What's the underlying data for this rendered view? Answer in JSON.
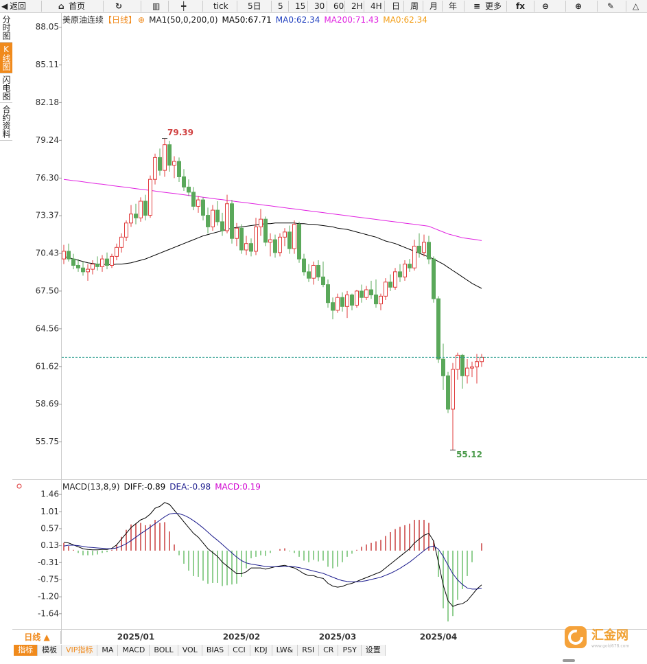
{
  "toolbar": [
    "返回",
    "首页",
    "tick",
    "5日",
    "5",
    "15",
    "30",
    "60",
    "2H",
    "4H",
    "日",
    "周",
    "月",
    "年",
    "更多"
  ],
  "side_tabs": [
    "分时图",
    "K线图",
    "闪电图",
    "合约资料"
  ],
  "period_button": "日线 ▲",
  "indicator_tabs": [
    "指标",
    "模板",
    "VIP指标",
    "MA",
    "MACD",
    "BOLL",
    "VOL",
    "BIAS",
    "CCI",
    "KDJ",
    "LW&",
    "RSI",
    "CR",
    "PSY",
    "设置"
  ],
  "watermark": {
    "name": "汇金网",
    "url": "www.gold678.com"
  },
  "chart_data": [
    {
      "type": "candlestick",
      "title": "美原油连续",
      "period": "【日线】",
      "indicator": "MA1(50,0,200,0)",
      "legend": [
        {
          "label": "MA50:67.71",
          "color": "#000000"
        },
        {
          "label": "MA0:62.34",
          "color": "#1f3fbf"
        },
        {
          "label": "MA200:71.43",
          "color": "#e020e0"
        },
        {
          "label": "MA0:62.34",
          "color": "#f39c12"
        }
      ],
      "categories": [
        null,
        null,
        null,
        null,
        null,
        null,
        null,
        null,
        null,
        null,
        null,
        null,
        null,
        null,
        null,
        "2025/01",
        null,
        null,
        null,
        null,
        null,
        null,
        null,
        null,
        null,
        null,
        null,
        null,
        null,
        null,
        null,
        null,
        null,
        null,
        null,
        null,
        null,
        "2025/02",
        null,
        null,
        null,
        null,
        null,
        null,
        null,
        null,
        null,
        null,
        null,
        null,
        null,
        null,
        null,
        null,
        null,
        null,
        null,
        "2025/03",
        null,
        null,
        null,
        null,
        null,
        null,
        null,
        null,
        null,
        null,
        null,
        null,
        null,
        null,
        null,
        null,
        null,
        null,
        null,
        null,
        "2025/04",
        null,
        null,
        null,
        null,
        null,
        null,
        null,
        null,
        null
      ],
      "open": [
        70.0,
        70.6,
        70.0,
        69.5,
        69.3,
        69.0,
        69.2,
        69.6,
        69.4,
        70.0,
        69.5,
        70.2,
        70.9,
        71.7,
        72.8,
        73.5,
        73.2,
        74.5,
        73.4,
        76.2,
        77.9,
        76.9,
        78.9,
        77.3,
        77.6,
        76.4,
        75.6,
        75.2,
        74.1,
        74.6,
        73.4,
        72.5,
        73.8,
        72.9,
        72.2,
        74.3,
        71.6,
        72.4,
        70.7,
        71.2,
        70.6,
        72.5,
        73.1,
        71.3,
        71.5,
        70.5,
        71.7,
        72.1,
        70.8,
        72.7,
        70.0,
        69.0,
        68.5,
        69.5,
        68.6,
        68.0,
        66.6,
        66.0,
        67.0,
        66.3,
        67.2,
        66.4,
        67.5,
        67.0,
        67.6,
        67.2,
        66.5,
        67.1,
        68.2,
        67.8,
        69.0,
        68.6,
        69.6,
        69.3,
        71.0,
        70.5,
        71.3,
        70.0,
        66.9,
        62.2,
        60.9,
        58.3,
        61.4,
        62.5,
        60.9,
        61.5,
        61.6,
        62.0
      ],
      "high": [
        71.1,
        71.2,
        70.4,
        70.0,
        69.8,
        69.6,
        69.9,
        70.2,
        70.3,
        70.5,
        70.4,
        71.2,
        72.0,
        73.0,
        74.2,
        74.3,
        74.8,
        75.0,
        76.5,
        78.2,
        78.6,
        79.39,
        79.2,
        78.0,
        77.9,
        77.0,
        76.2,
        75.6,
        74.9,
        74.8,
        74.0,
        74.2,
        74.5,
        73.6,
        75.0,
        74.6,
        72.8,
        72.7,
        71.8,
        71.6,
        73.2,
        73.9,
        73.3,
        72.0,
        71.9,
        72.0,
        72.4,
        72.6,
        73.0,
        72.9,
        70.4,
        69.6,
        69.8,
        69.9,
        69.8,
        68.4,
        67.0,
        67.3,
        67.4,
        67.5,
        67.3,
        67.6,
        68.0,
        67.9,
        68.3,
        68.4,
        67.3,
        68.5,
        68.8,
        69.3,
        69.6,
        69.9,
        70.0,
        71.5,
        72.0,
        71.9,
        71.8,
        70.2,
        67.1,
        63.4,
        61.2,
        61.9,
        62.7,
        62.6,
        62.2,
        62.0,
        62.6,
        62.6
      ],
      "low": [
        69.6,
        69.8,
        69.2,
        69.0,
        68.7,
        68.3,
        68.8,
        69.1,
        69.0,
        69.2,
        69.3,
        69.9,
        70.5,
        71.4,
        72.5,
        72.7,
        72.9,
        73.0,
        73.2,
        75.8,
        76.5,
        76.4,
        76.8,
        76.3,
        76.0,
        75.3,
        74.9,
        73.8,
        73.6,
        73.0,
        72.0,
        72.2,
        72.6,
        71.8,
        72.0,
        71.2,
        71.0,
        70.4,
        70.3,
        70.2,
        70.3,
        71.8,
        71.0,
        70.2,
        70.1,
        70.2,
        71.0,
        70.4,
        70.4,
        69.7,
        68.7,
        68.2,
        68.0,
        68.3,
        67.8,
        66.2,
        65.3,
        65.8,
        65.9,
        65.4,
        66.0,
        66.2,
        66.6,
        66.8,
        66.9,
        66.2,
        66.0,
        66.8,
        67.5,
        67.6,
        68.2,
        68.3,
        69.0,
        69.1,
        70.1,
        70.2,
        69.6,
        66.6,
        61.9,
        59.8,
        58.0,
        55.12,
        60.6,
        59.9,
        60.3,
        60.8,
        60.3,
        61.6
      ],
      "close": [
        70.6,
        70.0,
        69.5,
        69.3,
        69.0,
        69.2,
        69.6,
        69.4,
        70.0,
        69.5,
        70.2,
        70.9,
        71.7,
        72.8,
        73.5,
        73.2,
        74.5,
        73.4,
        76.2,
        77.9,
        76.9,
        78.9,
        77.3,
        77.6,
        76.4,
        75.6,
        75.2,
        74.1,
        74.6,
        73.4,
        72.5,
        73.8,
        72.9,
        72.2,
        74.3,
        71.6,
        72.4,
        70.7,
        71.2,
        70.6,
        72.5,
        73.1,
        71.3,
        71.5,
        70.5,
        71.7,
        72.1,
        70.8,
        72.7,
        70.0,
        69.0,
        68.5,
        69.5,
        68.6,
        68.0,
        66.6,
        66.0,
        67.0,
        66.3,
        67.2,
        66.4,
        67.5,
        67.0,
        67.6,
        67.2,
        66.5,
        67.1,
        68.2,
        67.8,
        69.0,
        68.6,
        69.6,
        69.3,
        71.0,
        70.5,
        71.3,
        70.0,
        66.9,
        62.2,
        60.9,
        58.3,
        61.4,
        62.5,
        60.9,
        61.5,
        61.6,
        62.0,
        62.34
      ],
      "series": [
        {
          "color": "#000000",
          "values": [
            70.2,
            70.1,
            70.0,
            69.9,
            69.8,
            69.7,
            69.65,
            69.6,
            69.6,
            69.55,
            69.55,
            69.6,
            69.6,
            69.65,
            69.7,
            69.8,
            69.9,
            70.0,
            70.15,
            70.3,
            70.45,
            70.6,
            70.75,
            70.9,
            71.05,
            71.2,
            71.35,
            71.5,
            71.65,
            71.8,
            71.9,
            72.0,
            72.1,
            72.2,
            72.3,
            72.4,
            72.45,
            72.5,
            72.55,
            72.6,
            72.65,
            72.7,
            72.75,
            72.75,
            72.8,
            72.8,
            72.8,
            72.8,
            72.8,
            72.75,
            72.75,
            72.7,
            72.7,
            72.65,
            72.6,
            72.55,
            72.5,
            72.4,
            72.35,
            72.3,
            72.2,
            72.1,
            72.0,
            71.9,
            71.8,
            71.7,
            71.55,
            71.4,
            71.3,
            71.2,
            71.05,
            70.9,
            70.75,
            70.6,
            70.45,
            70.3,
            70.15,
            70.0,
            69.8,
            69.6,
            69.35,
            69.1,
            68.85,
            68.6,
            68.35,
            68.1,
            67.9,
            67.71
          ]
        },
        {
          "color": "#e020e0",
          "values": [
            76.2,
            76.15,
            76.1,
            76.06,
            76.01,
            75.96,
            75.91,
            75.86,
            75.82,
            75.77,
            75.72,
            75.67,
            75.62,
            75.58,
            75.53,
            75.48,
            75.43,
            75.38,
            75.34,
            75.29,
            75.24,
            75.19,
            75.14,
            75.1,
            75.05,
            75.0,
            74.95,
            74.9,
            74.86,
            74.81,
            74.76,
            74.71,
            74.66,
            74.62,
            74.57,
            74.52,
            74.47,
            74.42,
            74.38,
            74.33,
            74.28,
            74.23,
            74.18,
            74.14,
            74.09,
            74.04,
            73.99,
            73.94,
            73.9,
            73.85,
            73.8,
            73.75,
            73.7,
            73.66,
            73.61,
            73.56,
            73.51,
            73.46,
            73.42,
            73.37,
            73.32,
            73.27,
            73.22,
            73.18,
            73.13,
            73.08,
            73.03,
            72.98,
            72.94,
            72.89,
            72.84,
            72.79,
            72.74,
            72.7,
            72.65,
            72.6,
            72.55,
            72.4,
            72.25,
            72.1,
            71.95,
            71.85,
            71.75,
            71.65,
            71.6,
            71.55,
            71.5,
            71.43
          ]
        }
      ],
      "up_color": "#e03c3c",
      "down_color": "#5aa85a",
      "last_price_color": "#2a9d8f",
      "ylim": [
        53.0,
        89.1
      ],
      "yticks": [
        88.05,
        85.11,
        82.18,
        79.24,
        {
          "value": 76.3,
          "label": "76.30"
        },
        73.37,
        70.43,
        {
          "value": 67.5,
          "label": "67.50"
        },
        64.56,
        61.62,
        58.69,
        55.75
      ],
      "grid": false
    },
    {
      "type": "macd",
      "title": "MACD(13,8,9)",
      "legend": [
        {
          "label": "DIFF:-0.89",
          "color": "#000000"
        },
        {
          "label": "DEA:-0.98",
          "color": "#1a1a8c"
        },
        {
          "label": "MACD:0.19",
          "color": "#d000d0"
        }
      ],
      "series": [
        {
          "color": "#000000",
          "values": [
            0.22,
            0.2,
            0.15,
            0.1,
            0.05,
            0.03,
            0.02,
            0.02,
            0.03,
            0.03,
            0.06,
            0.15,
            0.3,
            0.45,
            0.6,
            0.7,
            0.8,
            0.85,
            0.95,
            1.1,
            1.15,
            1.25,
            1.2,
            1.05,
            0.9,
            0.75,
            0.6,
            0.45,
            0.35,
            0.2,
            0.05,
            -0.05,
            -0.15,
            -0.3,
            -0.4,
            -0.5,
            -0.6,
            -0.6,
            -0.55,
            -0.45,
            -0.45,
            -0.45,
            -0.48,
            -0.45,
            -0.42,
            -0.4,
            -0.38,
            -0.42,
            -0.45,
            -0.52,
            -0.6,
            -0.65,
            -0.65,
            -0.7,
            -0.72,
            -0.85,
            -0.92,
            -0.95,
            -0.93,
            -0.88,
            -0.85,
            -0.8,
            -0.75,
            -0.7,
            -0.65,
            -0.6,
            -0.55,
            -0.45,
            -0.35,
            -0.25,
            -0.15,
            -0.05,
            0.05,
            0.2,
            0.3,
            0.4,
            0.45,
            0.25,
            -0.3,
            -0.9,
            -1.3,
            -1.45,
            -1.4,
            -1.38,
            -1.3,
            -1.15,
            -1.0,
            -0.89
          ]
        },
        {
          "color": "#1a1a8c",
          "values": [
            0.12,
            0.14,
            0.14,
            0.13,
            0.11,
            0.09,
            0.08,
            0.07,
            0.06,
            0.05,
            0.05,
            0.07,
            0.12,
            0.18,
            0.26,
            0.35,
            0.44,
            0.52,
            0.61,
            0.7,
            0.79,
            0.88,
            0.95,
            0.97,
            0.96,
            0.92,
            0.86,
            0.78,
            0.69,
            0.59,
            0.48,
            0.37,
            0.27,
            0.16,
            0.05,
            -0.06,
            -0.17,
            -0.26,
            -0.32,
            -0.35,
            -0.37,
            -0.39,
            -0.41,
            -0.42,
            -0.42,
            -0.42,
            -0.41,
            -0.41,
            -0.42,
            -0.44,
            -0.47,
            -0.5,
            -0.53,
            -0.56,
            -0.59,
            -0.64,
            -0.69,
            -0.74,
            -0.78,
            -0.8,
            -0.81,
            -0.81,
            -0.8,
            -0.78,
            -0.75,
            -0.72,
            -0.69,
            -0.64,
            -0.59,
            -0.53,
            -0.46,
            -0.38,
            -0.3,
            -0.2,
            -0.1,
            0.0,
            0.09,
            0.12,
            0.04,
            -0.15,
            -0.38,
            -0.6,
            -0.76,
            -0.88,
            -0.97,
            -1.0,
            -1.0,
            -0.98
          ]
        }
      ],
      "bars": {
        "up_color": "#c83c3c",
        "down_color": "#6cbf6c",
        "values": [
          0.2,
          0.12,
          0.02,
          -0.06,
          -0.12,
          -0.12,
          -0.12,
          -0.1,
          -0.06,
          -0.04,
          0.02,
          0.16,
          0.36,
          0.54,
          0.68,
          0.7,
          0.72,
          0.66,
          0.68,
          0.8,
          0.72,
          0.74,
          0.5,
          0.16,
          -0.12,
          -0.34,
          -0.52,
          -0.66,
          -0.68,
          -0.78,
          -0.86,
          -0.84,
          -0.84,
          -0.92,
          -0.9,
          -0.88,
          -0.86,
          -0.68,
          -0.46,
          -0.2,
          -0.16,
          -0.12,
          -0.14,
          -0.06,
          0.0,
          0.04,
          0.06,
          -0.02,
          -0.06,
          -0.16,
          -0.26,
          -0.3,
          -0.24,
          -0.28,
          -0.26,
          -0.42,
          -0.46,
          -0.42,
          -0.3,
          -0.16,
          -0.08,
          0.02,
          0.1,
          0.16,
          0.2,
          0.24,
          0.28,
          0.38,
          0.48,
          0.56,
          0.62,
          0.66,
          0.7,
          0.8,
          0.8,
          0.8,
          0.72,
          0.26,
          -0.68,
          -1.5,
          -1.84,
          -1.7,
          -1.28,
          -1.0,
          -0.66,
          -0.3,
          0.0,
          0.19
        ]
      },
      "ylim": [
        -2.0,
        1.8
      ],
      "yticks": [
        1.46,
        1.01,
        0.57,
        0.13,
        -0.31,
        -0.75,
        {
          "value": -1.2,
          "label": "-1.20"
        },
        -1.64
      ],
      "grid": false
    }
  ]
}
